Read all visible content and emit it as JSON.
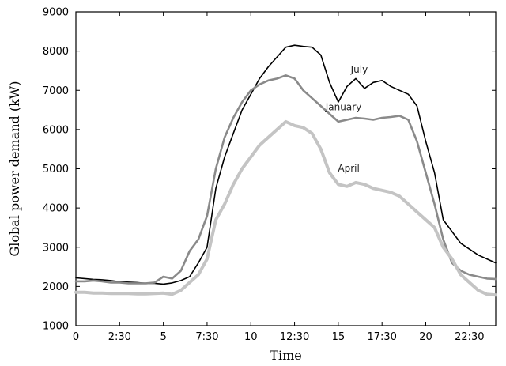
{
  "chart_data": {
    "type": "line",
    "xlabel": "Time",
    "ylabel": "Global power demand  (kW)",
    "xlim": [
      0,
      24
    ],
    "ylim": [
      1000,
      9000
    ],
    "x_ticks": [
      {
        "value": 0,
        "label": "0"
      },
      {
        "value": 2.5,
        "label": "2:30"
      },
      {
        "value": 5,
        "label": "5"
      },
      {
        "value": 7.5,
        "label": "7:30"
      },
      {
        "value": 10,
        "label": "10"
      },
      {
        "value": 12.5,
        "label": "12:30"
      },
      {
        "value": 15,
        "label": "15"
      },
      {
        "value": 17.5,
        "label": "17:30"
      },
      {
        "value": 20,
        "label": "20"
      },
      {
        "value": 22.5,
        "label": "22:30"
      }
    ],
    "y_ticks": [
      1000,
      2000,
      3000,
      4000,
      5000,
      6000,
      7000,
      8000,
      9000
    ],
    "grid": false,
    "series": [
      {
        "name": "July",
        "color": "#000000",
        "width": 1.6,
        "label_at": [
          16.2,
          7450
        ],
        "points": [
          [
            0,
            2220
          ],
          [
            0.5,
            2200
          ],
          [
            1,
            2180
          ],
          [
            1.5,
            2170
          ],
          [
            2,
            2150
          ],
          [
            2.5,
            2120
          ],
          [
            3,
            2110
          ],
          [
            3.5,
            2100
          ],
          [
            4,
            2080
          ],
          [
            4.5,
            2080
          ],
          [
            5,
            2060
          ],
          [
            5.5,
            2090
          ],
          [
            6,
            2150
          ],
          [
            6.5,
            2250
          ],
          [
            7,
            2600
          ],
          [
            7.5,
            3000
          ],
          [
            8,
            4500
          ],
          [
            8.5,
            5300
          ],
          [
            9,
            5900
          ],
          [
            9.5,
            6500
          ],
          [
            10,
            6900
          ],
          [
            10.5,
            7300
          ],
          [
            11,
            7600
          ],
          [
            11.5,
            7850
          ],
          [
            12,
            8100
          ],
          [
            12.5,
            8150
          ],
          [
            13,
            8120
          ],
          [
            13.5,
            8100
          ],
          [
            14,
            7900
          ],
          [
            14.5,
            7200
          ],
          [
            15,
            6700
          ],
          [
            15.5,
            7100
          ],
          [
            16,
            7300
          ],
          [
            16.5,
            7050
          ],
          [
            17,
            7200
          ],
          [
            17.5,
            7250
          ],
          [
            18,
            7100
          ],
          [
            18.5,
            7000
          ],
          [
            19,
            6900
          ],
          [
            19.5,
            6600
          ],
          [
            20,
            5700
          ],
          [
            20.5,
            4900
          ],
          [
            21,
            3700
          ],
          [
            21.5,
            3400
          ],
          [
            22,
            3100
          ],
          [
            22.5,
            2950
          ],
          [
            23,
            2800
          ],
          [
            23.5,
            2700
          ],
          [
            24,
            2600
          ]
        ]
      },
      {
        "name": "January",
        "color": "#8a8a8a",
        "width": 2.6,
        "label_at": [
          15.3,
          6490
        ],
        "points": [
          [
            0,
            2130
          ],
          [
            0.5,
            2130
          ],
          [
            1,
            2150
          ],
          [
            1.5,
            2130
          ],
          [
            2,
            2100
          ],
          [
            2.5,
            2100
          ],
          [
            3,
            2080
          ],
          [
            3.5,
            2080
          ],
          [
            4,
            2080
          ],
          [
            4.5,
            2100
          ],
          [
            5,
            2250
          ],
          [
            5.5,
            2200
          ],
          [
            6,
            2400
          ],
          [
            6.5,
            2900
          ],
          [
            7,
            3200
          ],
          [
            7.5,
            3800
          ],
          [
            8,
            5000
          ],
          [
            8.5,
            5800
          ],
          [
            9,
            6300
          ],
          [
            9.5,
            6700
          ],
          [
            10,
            7000
          ],
          [
            10.5,
            7150
          ],
          [
            11,
            7250
          ],
          [
            11.5,
            7300
          ],
          [
            12,
            7380
          ],
          [
            12.5,
            7300
          ],
          [
            13,
            7000
          ],
          [
            13.5,
            6800
          ],
          [
            14,
            6600
          ],
          [
            14.5,
            6400
          ],
          [
            15,
            6200
          ],
          [
            15.5,
            6250
          ],
          [
            16,
            6300
          ],
          [
            16.5,
            6280
          ],
          [
            17,
            6250
          ],
          [
            17.5,
            6300
          ],
          [
            18,
            6320
          ],
          [
            18.5,
            6350
          ],
          [
            19,
            6250
          ],
          [
            19.5,
            5700
          ],
          [
            20,
            4900
          ],
          [
            20.5,
            4100
          ],
          [
            21,
            3200
          ],
          [
            21.5,
            2600
          ],
          [
            22,
            2400
          ],
          [
            22.5,
            2300
          ],
          [
            23,
            2250
          ],
          [
            23.5,
            2200
          ],
          [
            24,
            2190
          ]
        ]
      },
      {
        "name": "April",
        "color": "#c4c4c4",
        "width": 4,
        "label_at": [
          15.6,
          4930
        ],
        "points": [
          [
            0,
            1850
          ],
          [
            0.5,
            1850
          ],
          [
            1,
            1830
          ],
          [
            1.5,
            1830
          ],
          [
            2,
            1820
          ],
          [
            2.5,
            1820
          ],
          [
            3,
            1820
          ],
          [
            3.5,
            1810
          ],
          [
            4,
            1810
          ],
          [
            4.5,
            1820
          ],
          [
            5,
            1830
          ],
          [
            5.5,
            1800
          ],
          [
            6,
            1900
          ],
          [
            6.5,
            2100
          ],
          [
            7,
            2300
          ],
          [
            7.5,
            2700
          ],
          [
            8,
            3700
          ],
          [
            8.5,
            4100
          ],
          [
            9,
            4600
          ],
          [
            9.5,
            5000
          ],
          [
            10,
            5300
          ],
          [
            10.5,
            5600
          ],
          [
            11,
            5800
          ],
          [
            11.5,
            6000
          ],
          [
            12,
            6200
          ],
          [
            12.5,
            6100
          ],
          [
            13,
            6050
          ],
          [
            13.5,
            5900
          ],
          [
            14,
            5500
          ],
          [
            14.5,
            4900
          ],
          [
            15,
            4600
          ],
          [
            15.5,
            4550
          ],
          [
            16,
            4650
          ],
          [
            16.5,
            4600
          ],
          [
            17,
            4500
          ],
          [
            17.5,
            4450
          ],
          [
            18,
            4400
          ],
          [
            18.5,
            4300
          ],
          [
            19,
            4100
          ],
          [
            19.5,
            3900
          ],
          [
            20,
            3700
          ],
          [
            20.5,
            3500
          ],
          [
            21,
            3000
          ],
          [
            21.5,
            2700
          ],
          [
            22,
            2300
          ],
          [
            22.5,
            2100
          ],
          [
            23,
            1900
          ],
          [
            23.5,
            1800
          ],
          [
            24,
            1780
          ]
        ]
      }
    ]
  }
}
